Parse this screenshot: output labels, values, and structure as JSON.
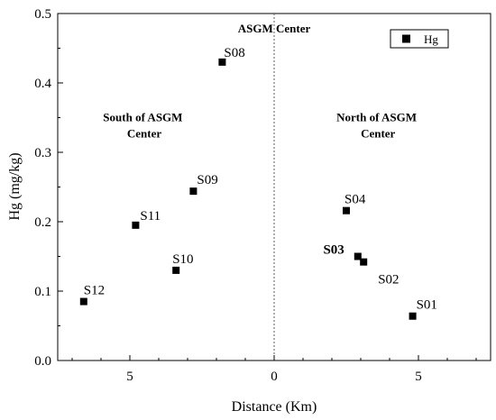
{
  "chart_data": {
    "type": "scatter",
    "xlabel": "Distance (Km)",
    "ylabel": "Hg (mg/kg)",
    "xlim": [
      -7.5,
      7.5
    ],
    "ylim": [
      0,
      0.5
    ],
    "x_tick_values": [
      -5,
      0,
      5
    ],
    "x_tick_labels": [
      "5",
      "0",
      "5"
    ],
    "y_ticks": [
      "0.0",
      "0.1",
      "0.2",
      "0.3",
      "0.4",
      "0.5"
    ],
    "legend": {
      "position": "top-right",
      "entry": "Hg"
    },
    "center_line_x": 0,
    "annotations": {
      "center": "ASGM Center",
      "south": [
        "South of ASGM",
        "Center"
      ],
      "north": [
        "North of ASGM",
        "Center"
      ]
    },
    "series": [
      {
        "name": "Hg",
        "points": [
          {
            "label": "S08",
            "x": -1.8,
            "y": 0.43
          },
          {
            "label": "S09",
            "x": -2.8,
            "y": 0.244
          },
          {
            "label": "S11",
            "x": -4.8,
            "y": 0.195
          },
          {
            "label": "S10",
            "x": -3.4,
            "y": 0.13
          },
          {
            "label": "S12",
            "x": -6.6,
            "y": 0.085
          },
          {
            "label": "S04",
            "x": 2.5,
            "y": 0.216
          },
          {
            "label": "S03",
            "x": 2.9,
            "y": 0.15,
            "bold": true
          },
          {
            "label": "S02",
            "x": 3.1,
            "y": 0.142
          },
          {
            "label": "S01",
            "x": 4.8,
            "y": 0.064
          }
        ]
      }
    ]
  }
}
